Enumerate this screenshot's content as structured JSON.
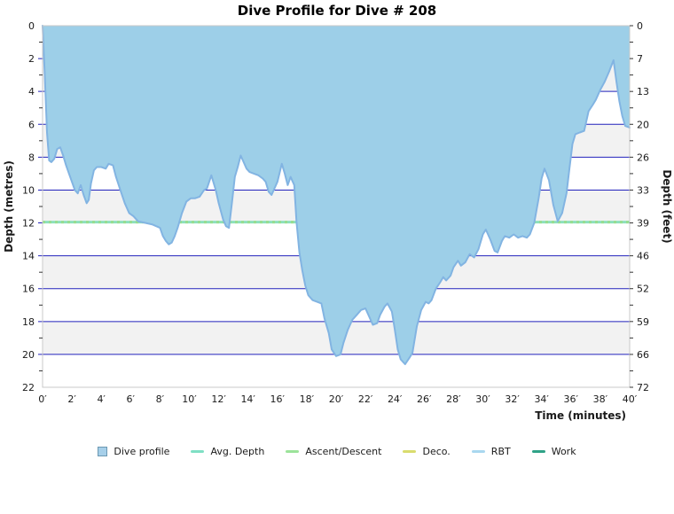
{
  "title": "Dive Profile for Dive # 208",
  "axes": {
    "left_title": "Depth (metres)",
    "right_title": "Depth (feet)",
    "x_title": "Time (minutes)",
    "metre_tick_labels": [
      "0",
      "2",
      "4",
      "6",
      "8",
      "10",
      "12",
      "14",
      "16",
      "18",
      "20",
      "22"
    ],
    "feet_tick_labels": [
      "0",
      "7",
      "13",
      "20",
      "26",
      "33",
      "39",
      "46",
      "52",
      "59",
      "66",
      "72"
    ],
    "time_tick_labels": [
      "0′",
      "2′",
      "4′",
      "6′",
      "8′",
      "10′",
      "12′",
      "14′",
      "16′",
      "18′",
      "20′",
      "22′",
      "24′",
      "26′",
      "28′",
      "30′",
      "32′",
      "34′",
      "36′",
      "38′",
      "40′"
    ]
  },
  "legend": {
    "items": [
      {
        "label": "Dive profile",
        "marker": "square",
        "color": "#a6cfe9",
        "border": "#6b98b2"
      },
      {
        "label": "Avg. Depth",
        "marker": "line",
        "color": "#7fdfc4"
      },
      {
        "label": "Ascent/Descent",
        "marker": "line",
        "color": "#9ce39a"
      },
      {
        "label": "Deco.",
        "marker": "line",
        "color": "#d9dc6e"
      },
      {
        "label": "RBT",
        "marker": "line",
        "color": "#a9d7ef"
      },
      {
        "label": "Work",
        "marker": "line",
        "color": "#2fa287"
      }
    ]
  },
  "colors": {
    "profile_fill": "#9dcfe8",
    "profile_stroke": "#82b4e2",
    "gridline_blue": "#2222bb",
    "avg_depth_mint": "#8ce0bc",
    "avg_depth_green_dash": "#97dd8f",
    "band_gray": "#f2f2f2",
    "band_white": "#ffffff",
    "plot_border": "#c9c9c9",
    "tick_black": "#333333",
    "label_color": "#1a1a1a"
  },
  "chart_data": {
    "type": "area",
    "title": "Dive Profile for Dive # 208",
    "xlabel": "Time (minutes)",
    "ylabel_left": "Depth (metres)",
    "ylabel_right": "Depth (feet)",
    "xlim": [
      0,
      40
    ],
    "ylim_metres": [
      0,
      22
    ],
    "ylim_feet": [
      0,
      72
    ],
    "y_inverted": true,
    "grid": "horizontal blue lines every 2 m, alternating white/gray bands",
    "legend_position": "bottom center",
    "avg_depth_line_m": 11.95,
    "series": [
      {
        "name": "Dive profile",
        "x_minutes": [
          0,
          0.15,
          0.3,
          0.45,
          0.6,
          0.8,
          1.0,
          1.2,
          1.4,
          1.6,
          1.8,
          2.0,
          2.2,
          2.4,
          2.6,
          2.8,
          3.0,
          3.15,
          3.3,
          3.5,
          3.7,
          4.0,
          4.3,
          4.5,
          4.8,
          5.0,
          5.3,
          5.6,
          5.9,
          6.2,
          6.5,
          7.0,
          7.5,
          8.0,
          8.2,
          8.4,
          8.6,
          8.8,
          9.0,
          9.2,
          9.5,
          9.8,
          10.1,
          10.4,
          10.7,
          11.0,
          11.2,
          11.5,
          11.8,
          12.0,
          12.3,
          12.5,
          12.7,
          12.9,
          13.1,
          13.3,
          13.5,
          13.7,
          13.9,
          14.1,
          14.4,
          14.7,
          15.0,
          15.2,
          15.4,
          15.6,
          15.8,
          16.0,
          16.3,
          16.5,
          16.7,
          16.9,
          17.0,
          17.15,
          17.3,
          17.5,
          17.7,
          17.9,
          18.1,
          18.4,
          18.7,
          19.0,
          19.2,
          19.5,
          19.7,
          20.0,
          20.3,
          20.5,
          20.8,
          21.1,
          21.4,
          21.7,
          22.0,
          22.3,
          22.5,
          22.8,
          23.0,
          23.3,
          23.5,
          23.8,
          24.0,
          24.2,
          24.4,
          24.7,
          25.0,
          25.2,
          25.5,
          25.8,
          26.1,
          26.3,
          26.5,
          26.8,
          27.1,
          27.3,
          27.5,
          27.8,
          28.0,
          28.3,
          28.5,
          28.8,
          29.1,
          29.4,
          29.7,
          30.0,
          30.2,
          30.5,
          30.8,
          31.0,
          31.3,
          31.5,
          31.8,
          32.1,
          32.4,
          32.7,
          33.0,
          33.2,
          33.5,
          33.8,
          34.0,
          34.2,
          34.5,
          34.8,
          35.1,
          35.4,
          35.7,
          35.9,
          36.1,
          36.3,
          36.6,
          36.9,
          37.2,
          37.5,
          37.7,
          38.0,
          38.3,
          38.6,
          38.9,
          39.1,
          39.3,
          39.5,
          39.7,
          40.0
        ],
        "depth_metres": [
          0,
          3.0,
          6.5,
          8.2,
          8.3,
          8.1,
          7.5,
          7.4,
          7.9,
          8.5,
          9.0,
          9.5,
          10.0,
          10.2,
          9.7,
          10.3,
          10.8,
          10.6,
          9.6,
          8.8,
          8.6,
          8.6,
          8.7,
          8.4,
          8.5,
          9.2,
          10.0,
          10.8,
          11.4,
          11.6,
          11.9,
          12.0,
          12.1,
          12.3,
          12.8,
          13.1,
          13.3,
          13.2,
          12.8,
          12.3,
          11.4,
          10.7,
          10.5,
          10.5,
          10.4,
          10.0,
          9.9,
          9.1,
          10.0,
          10.8,
          11.8,
          12.2,
          12.3,
          10.8,
          9.2,
          8.6,
          7.9,
          8.3,
          8.7,
          8.9,
          9.0,
          9.1,
          9.3,
          9.5,
          10.1,
          10.3,
          9.9,
          9.5,
          8.4,
          9.0,
          9.7,
          9.2,
          9.4,
          9.7,
          11.9,
          13.8,
          14.9,
          15.8,
          16.4,
          16.7,
          16.8,
          16.9,
          17.8,
          18.7,
          19.7,
          20.1,
          20.0,
          19.3,
          18.5,
          17.9,
          17.6,
          17.3,
          17.2,
          17.8,
          18.2,
          18.1,
          17.6,
          17.1,
          16.9,
          17.4,
          18.5,
          19.7,
          20.3,
          20.6,
          20.2,
          19.9,
          18.3,
          17.3,
          16.8,
          16.9,
          16.7,
          16.0,
          15.6,
          15.3,
          15.5,
          15.2,
          14.7,
          14.3,
          14.6,
          14.4,
          13.9,
          14.1,
          13.6,
          12.7,
          12.4,
          13.0,
          13.7,
          13.8,
          13.1,
          12.8,
          12.9,
          12.7,
          12.9,
          12.8,
          12.9,
          12.7,
          12.0,
          10.5,
          9.3,
          8.7,
          9.4,
          10.9,
          11.9,
          11.4,
          10.2,
          8.7,
          7.2,
          6.6,
          6.5,
          6.4,
          5.2,
          4.8,
          4.5,
          3.9,
          3.4,
          2.8,
          2.1,
          3.4,
          4.6,
          5.5,
          6.1,
          6.2
        ]
      }
    ]
  }
}
